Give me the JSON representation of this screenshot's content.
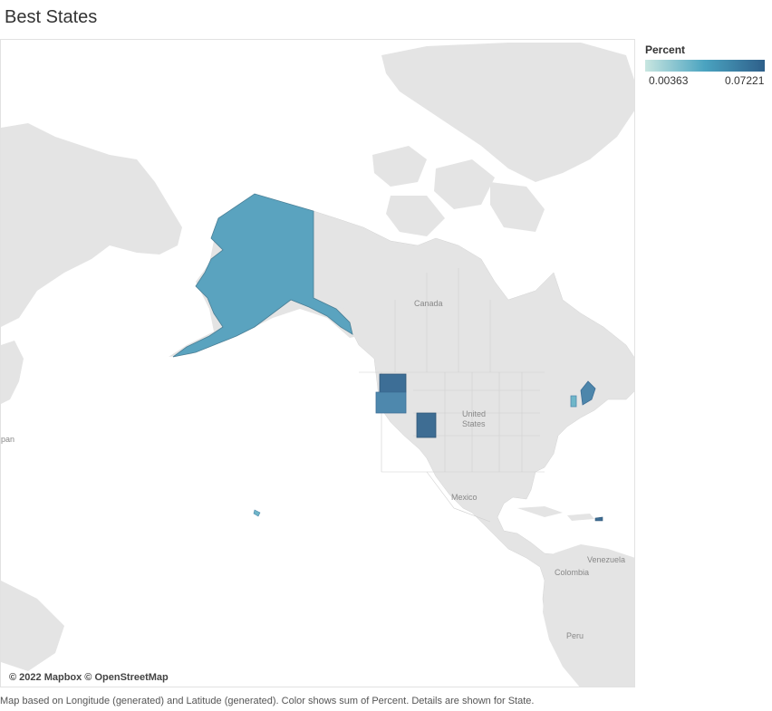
{
  "title": "Best States",
  "legend": {
    "title": "Percent",
    "min": "0.00363",
    "max": "0.07221",
    "colors": [
      "#c8e6e0",
      "#4aa3c0",
      "#2e5f8a"
    ]
  },
  "map": {
    "attribution": "© 2022 Mapbox © OpenStreetMap",
    "land_color": "#e4e4e4",
    "border_color": "#cfcfcf",
    "labels": {
      "canada": "Canada",
      "us_line1": "United",
      "us_line2": "States",
      "mexico": "Mexico",
      "venezuela": "Venezuela",
      "colombia": "Colombia",
      "peru": "Peru",
      "japan_fragment": "pan"
    },
    "highlighted_states": [
      {
        "state": "Alaska",
        "color": "#5aa3bf"
      },
      {
        "state": "Washington",
        "color": "#3d6e96"
      },
      {
        "state": "Oregon",
        "color": "#4e88ad"
      },
      {
        "state": "Utah",
        "color": "#3e6d93"
      },
      {
        "state": "Maine",
        "color": "#4d86ab"
      },
      {
        "state": "Vermont",
        "color": "#6fb6c8"
      },
      {
        "state": "Hawaii",
        "color": "#6fb6c8"
      },
      {
        "state": "Puerto Rico",
        "color": "#3e6d93"
      }
    ]
  },
  "caption": "Map based on Longitude (generated) and Latitude (generated).  Color shows sum of Percent.  Details are shown for State."
}
